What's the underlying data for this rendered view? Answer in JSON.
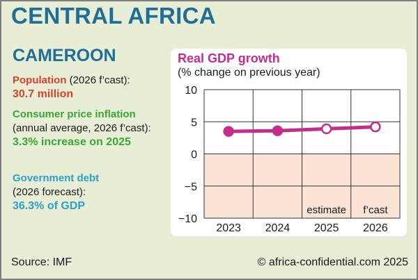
{
  "header": {
    "title": "CENTRAL AFRICA"
  },
  "country": "CAMEROON",
  "stats": {
    "population": {
      "label": "Population",
      "note": "(2026 f’cast):",
      "value": "30.7 million"
    },
    "inflation": {
      "label": "Consumer price inflation",
      "note": "(annual average, 2026 f’cast):",
      "value": "3.3% increase on 2025"
    },
    "debt": {
      "label": "Government debt",
      "note": "(2026 forecast):",
      "value": "36.3% of GDP"
    }
  },
  "footer": {
    "source": "Source: IMF",
    "credit": "© africa-confidential.com 2025"
  },
  "colors": {
    "title": "#1e6e98",
    "population": "#d4432c",
    "inflation": "#3aa537",
    "debt": "#2aa0c8",
    "series": "#c22e8c",
    "negative_band": "#fbe4d5",
    "background": "#e8eed5"
  },
  "chart_data": {
    "type": "line",
    "title": "Real GDP growth",
    "subtitle": "(% change on previous year)",
    "categories": [
      "2023",
      "2024",
      "2025",
      "2026"
    ],
    "category_notes": [
      "",
      "",
      "estimate",
      "f’cast"
    ],
    "series": [
      {
        "name": "Real GDP growth",
        "values": [
          3.5,
          3.6,
          3.9,
          4.2
        ],
        "marker_style": [
          "filled",
          "filled",
          "open",
          "open"
        ]
      }
    ],
    "ylim": [
      -10,
      10
    ],
    "yticks": [
      10,
      5,
      0,
      -5,
      -10
    ],
    "ytick_labels": [
      "10",
      "5",
      "0",
      "−5",
      "−10"
    ],
    "grid": true,
    "negative_region_shaded": true
  }
}
